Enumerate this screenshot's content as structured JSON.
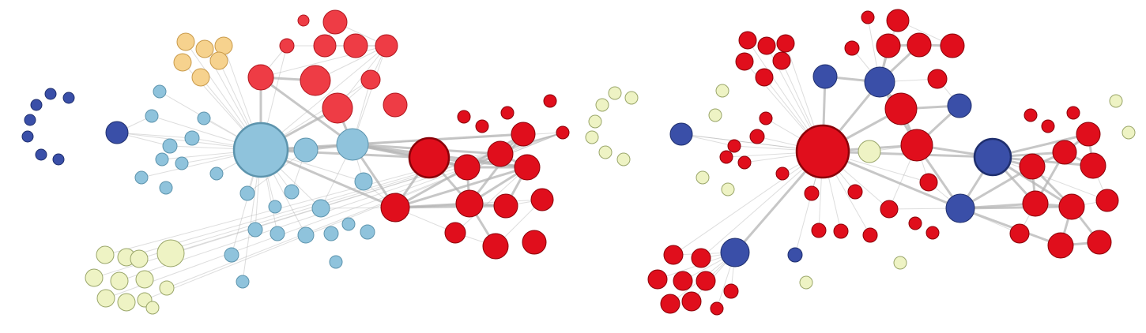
{
  "colors": {
    "dark_blue": "#3a4fa8",
    "light_blue": "#8fc3dc",
    "yellow": "#f6d28e",
    "pale_yellow": "#eef3c4",
    "red": "#e00e1c",
    "light_red": "#ee3c45",
    "edge": "#b4b4b4"
  },
  "panels": [
    {
      "name": "left-network"
    },
    {
      "name": "right-network"
    }
  ]
}
